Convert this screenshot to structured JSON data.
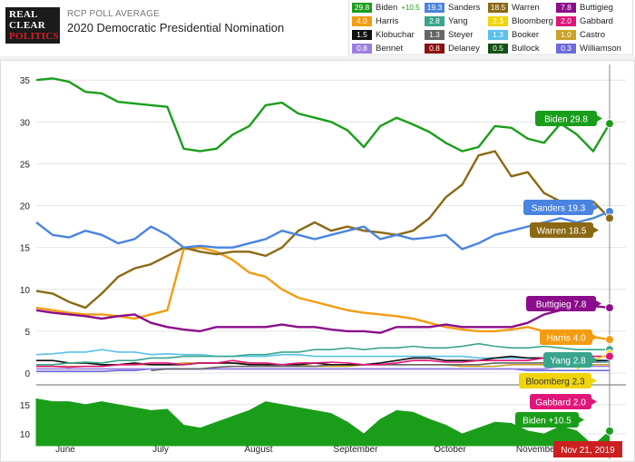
{
  "header": {
    "logo_lines": [
      "REAL",
      "CLEAR",
      "POLITICS"
    ],
    "kicker": "RCP POLL AVERAGE",
    "title": "2020 Democratic Presidential Nomination"
  },
  "legend": [
    {
      "name": "Biden",
      "value": "29.8",
      "extra": "+10.5",
      "color": "#1a9e1a"
    },
    {
      "name": "Sanders",
      "value": "19.3",
      "color": "#4a84e0"
    },
    {
      "name": "Warren",
      "value": "18.5",
      "color": "#8b6914"
    },
    {
      "name": "Buttigieg",
      "value": "7.8",
      "color": "#8b0d8b"
    },
    {
      "name": "Harris",
      "value": "4.0",
      "color": "#f39c12"
    },
    {
      "name": "Yang",
      "value": "2.8",
      "color": "#3aa58d"
    },
    {
      "name": "Bloomberg",
      "value": "2.3",
      "color": "#f1d50b"
    },
    {
      "name": "Gabbard",
      "value": "2.0",
      "color": "#e0157a"
    },
    {
      "name": "Klobuchar",
      "value": "1.5",
      "color": "#111111"
    },
    {
      "name": "Steyer",
      "value": "1.3",
      "color": "#666666"
    },
    {
      "name": "Booker",
      "value": "1.3",
      "color": "#5bc0eb"
    },
    {
      "name": "Castro",
      "value": "1.0",
      "color": "#c9a227"
    },
    {
      "name": "Bennet",
      "value": "0.8",
      "color": "#9b7fe0"
    },
    {
      "name": "Delaney",
      "value": "0.8",
      "color": "#8b1010"
    },
    {
      "name": "Bullock",
      "value": "0.5",
      "color": "#145214"
    },
    {
      "name": "Williamson",
      "value": "0.3",
      "color": "#6b6bdb"
    }
  ],
  "chart_data": {
    "type": "line",
    "title": "2020 Democratic Presidential Nomination",
    "x_label_ticks": [
      "June",
      "July",
      "August",
      "September",
      "October",
      "November"
    ],
    "y_ticks_main": [
      "0",
      "5",
      "10",
      "15",
      "20",
      "25",
      "30",
      "35"
    ],
    "y_ticks_lower": [
      "10",
      "15"
    ],
    "ylim": [
      0,
      36
    ],
    "current_date": "Nov 21, 2019",
    "end_labels": [
      {
        "text": "Biden 29.8",
        "color": "#1a9e1a"
      },
      {
        "text": "Sanders 19.3",
        "color": "#4a84e0"
      },
      {
        "text": "Warren 18.5",
        "color": "#8b6914"
      },
      {
        "text": "Buttigieg 7.8",
        "color": "#8b0d8b"
      },
      {
        "text": "Harris 4.0",
        "color": "#f39c12"
      },
      {
        "text": "Yang 2.8",
        "color": "#3aa58d"
      },
      {
        "text": "Bloomberg 2.3",
        "color": "#f1d50b"
      },
      {
        "text": "Gabbard 2.0",
        "color": "#e0157a"
      },
      {
        "text": "Biden +10.5",
        "color": "#1a9e1a"
      }
    ],
    "series": [
      {
        "name": "Biden",
        "color": "#1a9e1a",
        "values": [
          35,
          35.2,
          34.8,
          33.6,
          33.4,
          32.4,
          32.2,
          32.0,
          31.8,
          26.8,
          26.5,
          26.8,
          28.5,
          29.5,
          32.0,
          32.3,
          31.0,
          30.5,
          30.0,
          29.0,
          27.0,
          29.5,
          30.5,
          29.7,
          28.8,
          27.5,
          26.5,
          27.0,
          29.5,
          29.3,
          28.0,
          27.5,
          29.8,
          28.5,
          26.5,
          29.8
        ]
      },
      {
        "name": "Sanders",
        "color": "#4a84e0",
        "values": [
          18.0,
          16.5,
          16.2,
          17.0,
          16.5,
          15.5,
          16.0,
          17.5,
          16.5,
          15.0,
          15.2,
          15.0,
          15.0,
          15.5,
          16.0,
          17.0,
          16.5,
          16.0,
          16.5,
          17.0,
          17.5,
          16.0,
          16.5,
          16.0,
          16.2,
          16.5,
          14.8,
          15.5,
          16.5,
          17.0,
          17.5,
          18.0,
          18.5,
          18.0,
          18.5,
          19.3
        ]
      },
      {
        "name": "Warren",
        "color": "#8b6914",
        "values": [
          9.8,
          9.5,
          8.5,
          7.8,
          9.5,
          11.5,
          12.5,
          13.0,
          14.0,
          15.0,
          14.5,
          14.2,
          14.5,
          14.5,
          14.0,
          15.0,
          17.0,
          18.0,
          17.0,
          17.5,
          17.0,
          16.8,
          16.5,
          17.0,
          18.5,
          21.0,
          22.5,
          26.0,
          26.5,
          23.5,
          24.0,
          21.5,
          20.5,
          20.0,
          20.5,
          18.5
        ]
      },
      {
        "name": "Buttigieg",
        "color": "#8b0d8b",
        "values": [
          7.5,
          7.2,
          7.0,
          6.8,
          6.5,
          6.8,
          7.0,
          6.0,
          5.5,
          5.2,
          5.0,
          5.5,
          5.5,
          5.5,
          5.5,
          5.8,
          5.5,
          5.5,
          5.2,
          5.0,
          5.0,
          4.8,
          5.5,
          5.5,
          5.5,
          5.8,
          5.5,
          5.5,
          5.5,
          5.5,
          6.0,
          7.0,
          7.5,
          8.0,
          8.0,
          7.8
        ]
      },
      {
        "name": "Harris",
        "color": "#f39c12",
        "values": [
          7.8,
          7.5,
          7.2,
          7.0,
          7.0,
          6.8,
          6.5,
          7.0,
          7.5,
          14.8,
          15.0,
          14.5,
          13.5,
          12.0,
          11.5,
          10.0,
          9.0,
          8.5,
          8.0,
          7.5,
          7.2,
          7.0,
          6.8,
          6.5,
          6.0,
          5.5,
          5.2,
          5.0,
          5.0,
          5.2,
          5.5,
          5.0,
          4.8,
          4.5,
          4.3,
          4.0
        ]
      },
      {
        "name": "Yang",
        "color": "#3aa58d",
        "values": [
          1.0,
          1.0,
          1.2,
          1.3,
          1.2,
          1.5,
          1.5,
          1.8,
          1.8,
          2.0,
          2.0,
          2.0,
          2.0,
          2.2,
          2.2,
          2.5,
          2.5,
          2.8,
          2.8,
          3.0,
          2.8,
          3.0,
          3.0,
          3.2,
          3.0,
          3.0,
          3.2,
          3.5,
          3.2,
          3.0,
          3.0,
          3.2,
          3.0,
          2.8,
          2.8,
          2.8
        ]
      },
      {
        "name": "Bloomberg",
        "color": "#f1d50b",
        "values": [
          null,
          null,
          null,
          null,
          null,
          null,
          null,
          null,
          null,
          null,
          null,
          null,
          null,
          null,
          null,
          null,
          null,
          null,
          null,
          null,
          null,
          null,
          null,
          null,
          null,
          null,
          null,
          null,
          null,
          null,
          null,
          null,
          null,
          0.5,
          1.5,
          2.3
        ]
      },
      {
        "name": "Gabbard",
        "color": "#e0157a",
        "values": [
          0.8,
          0.8,
          0.7,
          0.8,
          0.8,
          1.0,
          1.0,
          1.2,
          1.2,
          1.0,
          1.2,
          1.2,
          1.5,
          1.2,
          1.2,
          1.0,
          1.2,
          1.2,
          1.3,
          1.2,
          1.0,
          1.0,
          1.2,
          1.5,
          1.5,
          1.3,
          1.3,
          1.5,
          1.5,
          1.5,
          1.5,
          1.8,
          1.8,
          2.0,
          2.0,
          2.0
        ]
      },
      {
        "name": "Klobuchar",
        "color": "#111111",
        "values": [
          1.5,
          1.5,
          1.2,
          1.2,
          1.0,
          1.0,
          1.2,
          1.0,
          1.0,
          1.0,
          1.2,
          1.2,
          1.2,
          1.0,
          1.0,
          1.0,
          1.0,
          1.2,
          1.0,
          1.0,
          1.0,
          1.2,
          1.5,
          1.8,
          1.8,
          1.5,
          1.5,
          1.5,
          1.8,
          2.0,
          1.8,
          1.8,
          1.8,
          1.8,
          1.5,
          1.5
        ]
      },
      {
        "name": "Booker",
        "color": "#5bc0eb",
        "values": [
          2.2,
          2.3,
          2.5,
          2.5,
          2.8,
          2.5,
          2.5,
          2.2,
          2.3,
          2.2,
          2.2,
          2.0,
          2.0,
          2.0,
          2.0,
          2.2,
          2.2,
          2.0,
          2.0,
          2.0,
          2.0,
          2.0,
          2.0,
          2.0,
          2.0,
          2.0,
          2.0,
          1.8,
          1.8,
          1.8,
          1.8,
          1.8,
          1.8,
          1.5,
          1.5,
          1.3
        ]
      },
      {
        "name": "Steyer",
        "color": "#666666",
        "values": [
          null,
          null,
          null,
          null,
          null,
          null,
          null,
          0.3,
          0.5,
          0.5,
          0.5,
          0.7,
          0.8,
          0.8,
          0.8,
          0.8,
          0.8,
          0.8,
          1.0,
          1.0,
          1.0,
          1.0,
          1.0,
          1.0,
          1.0,
          1.0,
          1.0,
          1.0,
          1.2,
          1.2,
          1.2,
          1.2,
          1.3,
          1.3,
          1.3,
          1.3
        ]
      },
      {
        "name": "Castro",
        "color": "#c9a227",
        "values": [
          0.8,
          0.8,
          0.8,
          0.8,
          0.8,
          1.0,
          1.0,
          1.0,
          1.0,
          1.2,
          1.2,
          1.2,
          1.2,
          1.2,
          1.0,
          1.0,
          1.0,
          0.8,
          0.8,
          0.8,
          1.0,
          1.0,
          1.0,
          1.0,
          1.0,
          1.0,
          0.8,
          0.8,
          0.8,
          1.0,
          1.0,
          1.0,
          1.0,
          1.0,
          1.0,
          1.0
        ]
      },
      {
        "name": "Bennet",
        "color": "#9b7fe0",
        "values": [
          0.5,
          0.5,
          0.5,
          0.5,
          0.5,
          0.5,
          0.5,
          0.5,
          0.5,
          0.5,
          0.5,
          0.5,
          0.5,
          0.5,
          0.5,
          0.5,
          0.5,
          0.5,
          0.5,
          0.5,
          0.5,
          0.5,
          0.5,
          0.5,
          0.5,
          0.5,
          0.5,
          0.5,
          0.5,
          0.5,
          0.5,
          0.5,
          0.8,
          0.8,
          0.8,
          0.8
        ]
      },
      {
        "name": "Williamson",
        "color": "#6b6bdb",
        "values": [
          0.2,
          0.2,
          0.2,
          0.2,
          0.2,
          0.3,
          0.3,
          0.5,
          0.5,
          0.5,
          0.5,
          0.5,
          0.5,
          0.5,
          0.5,
          0.5,
          0.5,
          0.5,
          0.5,
          0.5,
          0.5,
          0.5,
          0.5,
          0.5,
          0.5,
          0.5,
          0.5,
          0.5,
          0.5,
          0.5,
          0.3,
          0.3,
          0.3,
          0.3,
          0.3,
          0.3
        ]
      }
    ],
    "spread": {
      "name": "Biden +10.5",
      "color": "#1a9e1a",
      "values": [
        16.0,
        15.5,
        15.5,
        15.0,
        15.5,
        15.0,
        14.5,
        14.0,
        14.2,
        11.5,
        11.0,
        12.0,
        13.0,
        14.0,
        15.5,
        15.0,
        14.5,
        14.0,
        13.5,
        12.0,
        10.0,
        12.5,
        14.0,
        13.7,
        12.5,
        11.5,
        10.0,
        11.0,
        12.0,
        11.8,
        10.5,
        10.0,
        11.3,
        10.5,
        8.0,
        10.5
      ]
    }
  }
}
